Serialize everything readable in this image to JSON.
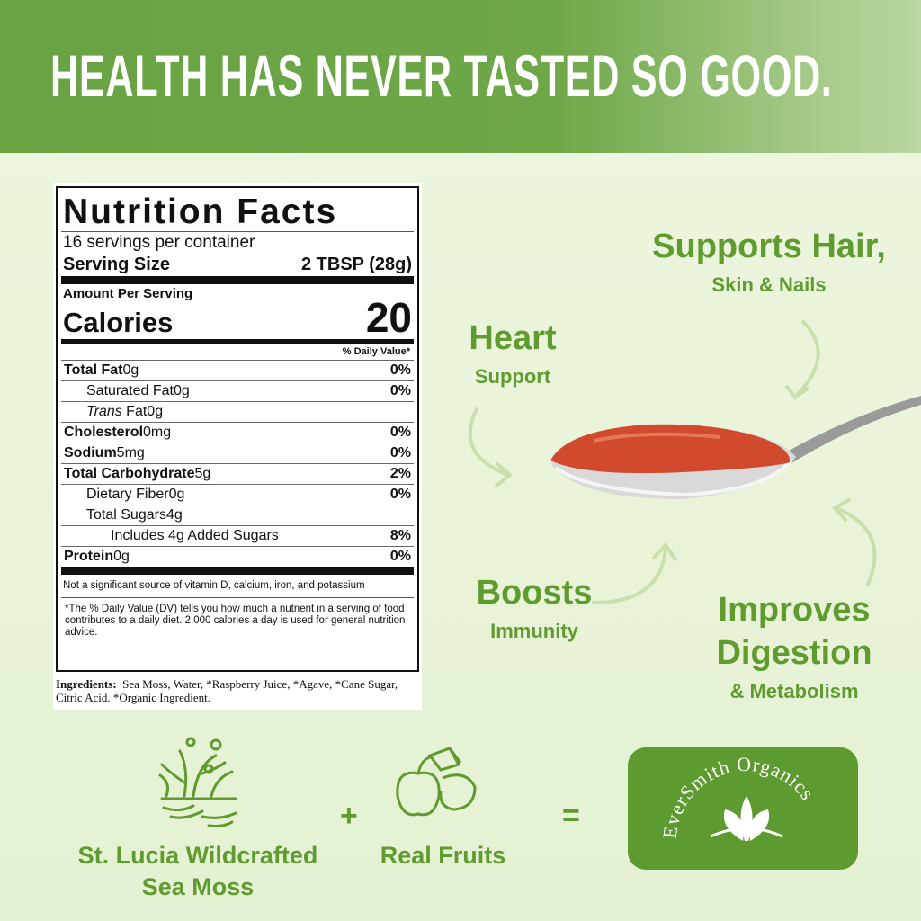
{
  "banner": {
    "title": "HEALTH HAS NEVER TASTED SO GOOD."
  },
  "nutrition": {
    "title": "Nutrition Facts",
    "servings": "16 servings per container",
    "serving_size_label": "Serving Size",
    "serving_size": "2 TBSP (28g)",
    "amount_per_serving": "Amount Per Serving",
    "calories_label": "Calories",
    "calories": "20",
    "daily_value_header": "% Daily Value*",
    "rows": [
      {
        "label": "Total Fat",
        "amount": "0g",
        "dv": "0%",
        "bold": true,
        "indent": 0
      },
      {
        "label": "Saturated Fat",
        "amount": "0g",
        "dv": "0%",
        "bold": false,
        "indent": 1
      },
      {
        "label_italic": "Trans",
        "label": "Fat",
        "amount": "0g",
        "bold": false,
        "indent": 1
      },
      {
        "label": "Cholesterol",
        "amount": "0mg",
        "dv": "0%",
        "bold": true,
        "indent": 0
      },
      {
        "label": "Sodium",
        "amount": "5mg",
        "dv": "0%",
        "bold": true,
        "indent": 0
      },
      {
        "label": "Total Carbohydrate",
        "amount": "5g",
        "dv": "2%",
        "bold": true,
        "indent": 0
      },
      {
        "label": "Dietary Fiber",
        "amount": "0g",
        "dv": "0%",
        "bold": false,
        "indent": 1
      },
      {
        "label": "Total Sugars",
        "amount": "4g",
        "bold": false,
        "indent": 1
      },
      {
        "label": "Includes 4g Added Sugars",
        "dv": "8%",
        "bold": false,
        "indent": 2
      },
      {
        "label": "Protein",
        "amount": "0g",
        "dv": "0%",
        "bold": true,
        "indent": 0
      }
    ],
    "footnote_1": "Not a significant source of vitamin D, calcium, iron, and potassium",
    "footnote_2": "*The % Daily Value (DV) tells you how much a nutrient in a serving of food contributes to a daily diet. 2,000 calories a day is used for general nutrition advice.",
    "ingredients_label": "Ingredients:",
    "ingredients": "Sea Moss, Water, *Raspberry Juice, *Agave, *Cane Sugar, Citric Acid. *Organic Ingredient."
  },
  "benefits": [
    {
      "title": "Supports Hair,",
      "subtitle": "Skin & Nails"
    },
    {
      "title": "Heart",
      "subtitle": "Support"
    },
    {
      "title": "Boosts",
      "subtitle": "Immunity"
    },
    {
      "title": "Improves Digestion",
      "subtitle": "& Metabolism"
    }
  ],
  "formula": {
    "items": [
      "St. Lucia Wildcrafted Sea Moss",
      "Real Fruits"
    ],
    "plus": "+",
    "equals": "=",
    "brand": "EverSmith Organics"
  }
}
